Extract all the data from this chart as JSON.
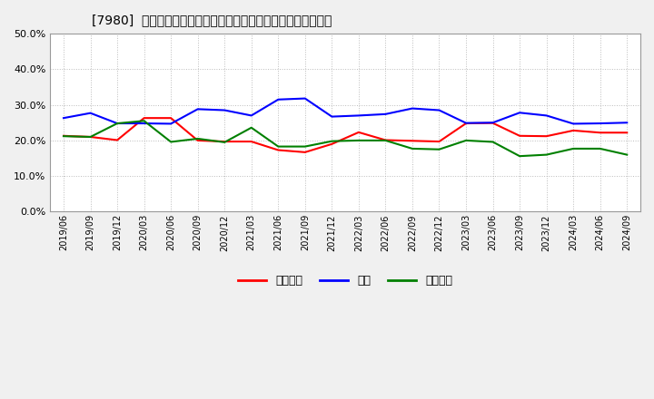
{
  "title": "[7980]  売上債権、在庫、買入債務の総資産に対する比率の推移",
  "x_labels": [
    "2019/06",
    "2019/09",
    "2019/12",
    "2020/03",
    "2020/06",
    "2020/09",
    "2020/12",
    "2021/03",
    "2021/06",
    "2021/09",
    "2021/12",
    "2022/03",
    "2022/06",
    "2022/09",
    "2022/12",
    "2023/03",
    "2023/06",
    "2023/09",
    "2023/12",
    "2024/03",
    "2024/06",
    "2024/09"
  ],
  "series": {
    "売上債権": {
      "color": "#ff0000",
      "values": [
        0.213,
        0.21,
        0.201,
        0.263,
        0.263,
        0.2,
        0.197,
        0.197,
        0.173,
        0.167,
        0.19,
        0.223,
        0.201,
        0.199,
        0.197,
        0.248,
        0.249,
        0.213,
        0.212,
        0.228,
        0.222,
        0.222
      ]
    },
    "在庫": {
      "color": "#0000ff",
      "values": [
        0.263,
        0.277,
        0.248,
        0.248,
        0.247,
        0.288,
        0.285,
        0.27,
        0.315,
        0.318,
        0.267,
        0.27,
        0.274,
        0.29,
        0.285,
        0.249,
        0.25,
        0.278,
        0.27,
        0.247,
        0.248,
        0.25
      ]
    },
    "買入債務": {
      "color": "#008000",
      "values": [
        0.212,
        0.21,
        0.248,
        0.255,
        0.196,
        0.205,
        0.195,
        0.236,
        0.183,
        0.183,
        0.198,
        0.2,
        0.2,
        0.177,
        0.175,
        0.2,
        0.196,
        0.156,
        0.16,
        0.177,
        0.177,
        0.16
      ]
    }
  },
  "ylim": [
    0.0,
    0.5
  ],
  "yticks": [
    0.0,
    0.1,
    0.2,
    0.3,
    0.4,
    0.5
  ],
  "legend_labels": [
    "売上債権",
    "在庫",
    "買入債務"
  ],
  "legend_colors": [
    "#ff0000",
    "#0000ff",
    "#008000"
  ],
  "background_color": "#f0f0f0",
  "plot_bg_color": "#ffffff",
  "grid_color": "#aaaaaa",
  "title_fontsize": 10,
  "line_width": 1.5
}
